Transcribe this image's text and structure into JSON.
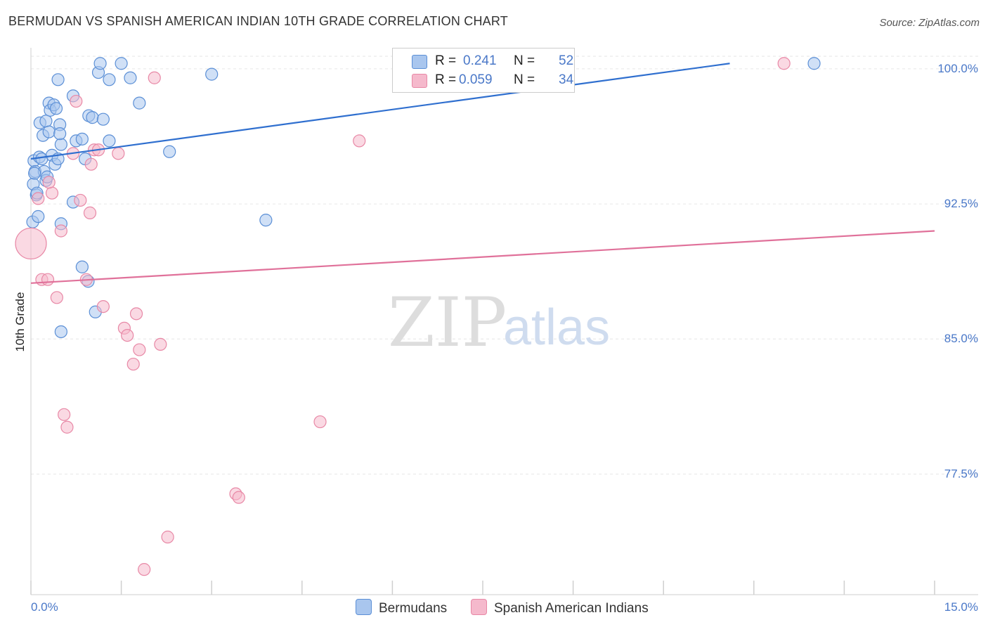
{
  "title": "BERMUDAN VS SPANISH AMERICAN INDIAN 10TH GRADE CORRELATION CHART",
  "source": "Source: ZipAtlas.com",
  "watermark": {
    "zip": "ZIP",
    "atlas": "atlas"
  },
  "colors": {
    "blue_fill": "#a9c6ee",
    "blue_stroke": "#5b8fd6",
    "blue_line": "#2f6fcf",
    "pink_fill": "#f5b9cc",
    "pink_stroke": "#e888a6",
    "pink_line": "#e0719a",
    "axis_label": "#4a78c8",
    "grid": "#e6e6e6"
  },
  "legend": {
    "r_label": "R =",
    "n_label": "N =",
    "rows": [
      {
        "series": "Bermudans",
        "r": "0.241",
        "n": "52"
      },
      {
        "series": "Spanish American Indians",
        "r": "0.059",
        "n": "34"
      }
    ]
  },
  "chart_data": {
    "type": "scatter",
    "title": "BERMUDAN VS SPANISH AMERICAN INDIAN 10TH GRADE CORRELATION CHART",
    "xlabel": "",
    "ylabel": "10th Grade",
    "xlim": [
      0.0,
      15.0
    ],
    "ylim": [
      70.8,
      100.7
    ],
    "x_tick_labels": [
      "0.0%",
      "15.0%"
    ],
    "y_ticks": [
      77.5,
      85.0,
      92.5,
      100.0
    ],
    "y_tick_labels": [
      "77.5%",
      "85.0%",
      "92.5%",
      "100.0%"
    ],
    "grid": true,
    "series": [
      {
        "name": "Bermudans",
        "trend": {
          "x": [
            0.0,
            11.6
          ],
          "y": [
            95.0,
            100.3
          ]
        },
        "points": [
          {
            "x": 0.05,
            "y": 94.9
          },
          {
            "x": 0.07,
            "y": 94.3
          },
          {
            "x": 0.04,
            "y": 93.6
          },
          {
            "x": 0.09,
            "y": 93.0
          },
          {
            "x": 0.03,
            "y": 91.5
          },
          {
            "x": 0.12,
            "y": 91.8
          },
          {
            "x": 0.14,
            "y": 95.1
          },
          {
            "x": 0.18,
            "y": 95.0
          },
          {
            "x": 0.22,
            "y": 94.3
          },
          {
            "x": 0.25,
            "y": 93.8
          },
          {
            "x": 0.27,
            "y": 94.0
          },
          {
            "x": 0.15,
            "y": 97.0
          },
          {
            "x": 0.2,
            "y": 96.3
          },
          {
            "x": 0.25,
            "y": 97.1
          },
          {
            "x": 0.3,
            "y": 96.5
          },
          {
            "x": 0.35,
            "y": 95.2
          },
          {
            "x": 0.4,
            "y": 94.7
          },
          {
            "x": 0.45,
            "y": 95.0
          },
          {
            "x": 0.5,
            "y": 95.8
          },
          {
            "x": 0.3,
            "y": 98.1
          },
          {
            "x": 0.32,
            "y": 97.7
          },
          {
            "x": 0.38,
            "y": 98.0
          },
          {
            "x": 0.42,
            "y": 97.8
          },
          {
            "x": 0.48,
            "y": 96.9
          },
          {
            "x": 0.48,
            "y": 96.4
          },
          {
            "x": 0.45,
            "y": 99.4
          },
          {
            "x": 0.7,
            "y": 98.5
          },
          {
            "x": 0.75,
            "y": 96.0
          },
          {
            "x": 0.85,
            "y": 96.1
          },
          {
            "x": 0.9,
            "y": 95.0
          },
          {
            "x": 0.96,
            "y": 97.4
          },
          {
            "x": 1.02,
            "y": 97.3
          },
          {
            "x": 1.2,
            "y": 97.2
          },
          {
            "x": 1.3,
            "y": 96.0
          },
          {
            "x": 1.12,
            "y": 99.8
          },
          {
            "x": 1.15,
            "y": 100.3
          },
          {
            "x": 1.3,
            "y": 99.4
          },
          {
            "x": 1.5,
            "y": 100.3
          },
          {
            "x": 1.65,
            "y": 99.5
          },
          {
            "x": 1.8,
            "y": 98.1
          },
          {
            "x": 2.3,
            "y": 95.4
          },
          {
            "x": 3.0,
            "y": 99.7
          },
          {
            "x": 0.7,
            "y": 92.6
          },
          {
            "x": 0.5,
            "y": 91.4
          },
          {
            "x": 0.85,
            "y": 89.0
          },
          {
            "x": 0.95,
            "y": 88.2
          },
          {
            "x": 1.07,
            "y": 86.5
          },
          {
            "x": 0.5,
            "y": 85.4
          },
          {
            "x": 3.9,
            "y": 91.6
          },
          {
            "x": 13.0,
            "y": 100.3
          },
          {
            "x": 0.06,
            "y": 94.2
          },
          {
            "x": 0.1,
            "y": 93.1
          }
        ]
      },
      {
        "name": "Spanish American Indians",
        "trend": {
          "x": [
            0.0,
            15.0
          ],
          "y": [
            88.1,
            91.0
          ]
        },
        "points": [
          {
            "x": 0.0,
            "y": 90.3,
            "big": true
          },
          {
            "x": 0.12,
            "y": 92.8
          },
          {
            "x": 0.18,
            "y": 88.3
          },
          {
            "x": 0.28,
            "y": 88.3
          },
          {
            "x": 0.35,
            "y": 93.1
          },
          {
            "x": 0.3,
            "y": 93.7
          },
          {
            "x": 0.43,
            "y": 87.3
          },
          {
            "x": 0.5,
            "y": 91.0
          },
          {
            "x": 0.55,
            "y": 80.8
          },
          {
            "x": 0.6,
            "y": 80.1
          },
          {
            "x": 0.7,
            "y": 95.3
          },
          {
            "x": 0.75,
            "y": 98.2
          },
          {
            "x": 0.82,
            "y": 92.7
          },
          {
            "x": 0.92,
            "y": 88.3
          },
          {
            "x": 0.98,
            "y": 92.0
          },
          {
            "x": 1.0,
            "y": 94.7
          },
          {
            "x": 1.05,
            "y": 95.5
          },
          {
            "x": 1.12,
            "y": 95.5
          },
          {
            "x": 1.2,
            "y": 86.8
          },
          {
            "x": 1.45,
            "y": 95.3
          },
          {
            "x": 1.55,
            "y": 85.6
          },
          {
            "x": 1.6,
            "y": 85.2
          },
          {
            "x": 1.7,
            "y": 83.6
          },
          {
            "x": 1.75,
            "y": 86.4
          },
          {
            "x": 1.8,
            "y": 84.4
          },
          {
            "x": 1.88,
            "y": 72.2
          },
          {
            "x": 2.05,
            "y": 99.5
          },
          {
            "x": 2.15,
            "y": 84.7
          },
          {
            "x": 2.27,
            "y": 74.0
          },
          {
            "x": 3.4,
            "y": 76.4
          },
          {
            "x": 3.45,
            "y": 76.2
          },
          {
            "x": 4.8,
            "y": 80.4
          },
          {
            "x": 5.45,
            "y": 96.0
          },
          {
            "x": 12.5,
            "y": 100.3
          }
        ]
      }
    ]
  }
}
